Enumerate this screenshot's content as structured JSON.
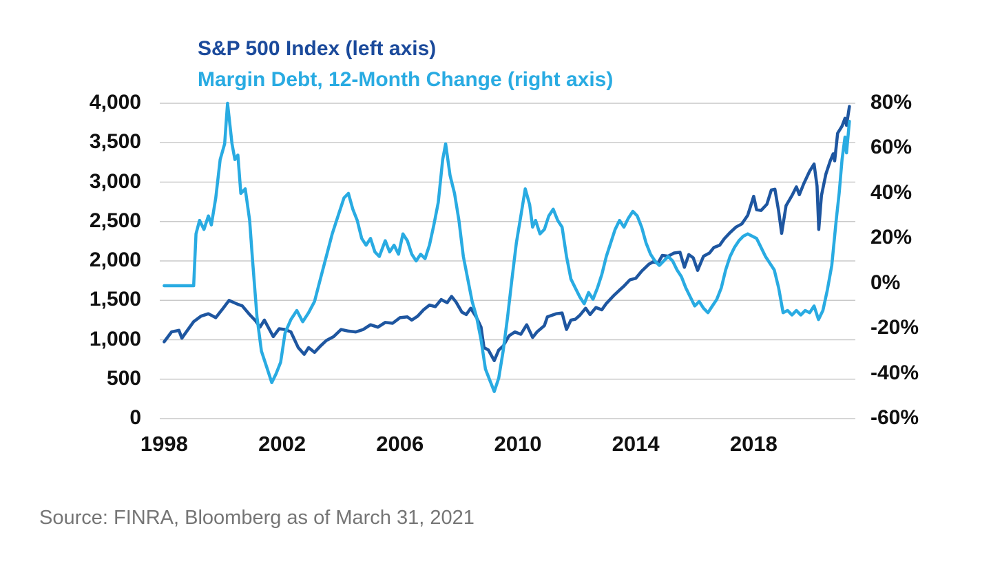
{
  "page": {
    "source": "Source: FINRA, Bloomberg as of March 31, 2021"
  },
  "chart_data": {
    "type": "line",
    "title_lines": [
      {
        "text": "S&P 500 Index (left axis)",
        "color": "#1B4A9B"
      },
      {
        "text": "Margin Debt, 12-Month Change (right axis)",
        "color": "#29ABE2"
      }
    ],
    "grid_color": "#c9c9c9",
    "x_range": [
      1997.85,
      2021.45
    ],
    "x_axis": {
      "labels": [
        "1998",
        "2002",
        "2006",
        "2010",
        "2014",
        "2018"
      ],
      "values": [
        1998,
        2002,
        2006,
        2010,
        2014,
        2018
      ]
    },
    "left_axis": {
      "title": "S&P 500 Index",
      "labels": [
        "4,000",
        "3,500",
        "3,000",
        "2,500",
        "2,000",
        "1,500",
        "1,000",
        "500",
        "0"
      ],
      "values": [
        4000,
        3500,
        3000,
        2500,
        2000,
        1500,
        1000,
        500,
        0
      ],
      "range": [
        0,
        4000
      ]
    },
    "right_axis": {
      "title": "Margin Debt, 12-Month Change",
      "labels": [
        "80%",
        "60%",
        "40%",
        "20%",
        "0%",
        "-20%",
        "-40%",
        "-60%"
      ],
      "values": [
        80,
        60,
        40,
        20,
        0,
        -20,
        -40,
        -60
      ],
      "range": [
        -60,
        80
      ]
    },
    "series": [
      {
        "id": "sp500-line",
        "name": "S&P 500 Index",
        "axis": "left",
        "color": "#1E56A0",
        "width": 4.5,
        "points": [
          [
            1998.0,
            975
          ],
          [
            1998.25,
            1100
          ],
          [
            1998.5,
            1120
          ],
          [
            1998.6,
            1020
          ],
          [
            1998.75,
            1100
          ],
          [
            1999.0,
            1230
          ],
          [
            1999.25,
            1300
          ],
          [
            1999.5,
            1330
          ],
          [
            1999.75,
            1280
          ],
          [
            2000.0,
            1400
          ],
          [
            2000.2,
            1500
          ],
          [
            2000.5,
            1450
          ],
          [
            2000.65,
            1430
          ],
          [
            2000.9,
            1320
          ],
          [
            2001.1,
            1240
          ],
          [
            2001.25,
            1160
          ],
          [
            2001.4,
            1250
          ],
          [
            2001.7,
            1040
          ],
          [
            2001.9,
            1140
          ],
          [
            2002.1,
            1130
          ],
          [
            2002.3,
            1100
          ],
          [
            2002.55,
            900
          ],
          [
            2002.75,
            815
          ],
          [
            2002.9,
            900
          ],
          [
            2003.1,
            840
          ],
          [
            2003.3,
            920
          ],
          [
            2003.5,
            990
          ],
          [
            2003.75,
            1040
          ],
          [
            2004.0,
            1130
          ],
          [
            2004.25,
            1110
          ],
          [
            2004.5,
            1100
          ],
          [
            2004.75,
            1130
          ],
          [
            2005.0,
            1190
          ],
          [
            2005.25,
            1160
          ],
          [
            2005.5,
            1220
          ],
          [
            2005.75,
            1210
          ],
          [
            2006.0,
            1280
          ],
          [
            2006.25,
            1290
          ],
          [
            2006.4,
            1250
          ],
          [
            2006.6,
            1300
          ],
          [
            2006.8,
            1380
          ],
          [
            2007.0,
            1440
          ],
          [
            2007.2,
            1420
          ],
          [
            2007.4,
            1510
          ],
          [
            2007.6,
            1470
          ],
          [
            2007.75,
            1550
          ],
          [
            2007.9,
            1480
          ],
          [
            2008.1,
            1350
          ],
          [
            2008.25,
            1320
          ],
          [
            2008.4,
            1400
          ],
          [
            2008.6,
            1280
          ],
          [
            2008.75,
            1160
          ],
          [
            2008.85,
            900
          ],
          [
            2009.0,
            870
          ],
          [
            2009.2,
            735
          ],
          [
            2009.35,
            870
          ],
          [
            2009.5,
            920
          ],
          [
            2009.7,
            1050
          ],
          [
            2009.9,
            1100
          ],
          [
            2010.1,
            1070
          ],
          [
            2010.3,
            1190
          ],
          [
            2010.5,
            1030
          ],
          [
            2010.65,
            1100
          ],
          [
            2010.9,
            1180
          ],
          [
            2011.0,
            1290
          ],
          [
            2011.3,
            1330
          ],
          [
            2011.5,
            1340
          ],
          [
            2011.65,
            1130
          ],
          [
            2011.8,
            1250
          ],
          [
            2011.95,
            1260
          ],
          [
            2012.1,
            1310
          ],
          [
            2012.3,
            1400
          ],
          [
            2012.45,
            1320
          ],
          [
            2012.65,
            1410
          ],
          [
            2012.85,
            1380
          ],
          [
            2013.0,
            1460
          ],
          [
            2013.25,
            1560
          ],
          [
            2013.45,
            1630
          ],
          [
            2013.6,
            1680
          ],
          [
            2013.8,
            1760
          ],
          [
            2014.0,
            1780
          ],
          [
            2014.2,
            1870
          ],
          [
            2014.45,
            1960
          ],
          [
            2014.6,
            1990
          ],
          [
            2014.75,
            1970
          ],
          [
            2014.9,
            2070
          ],
          [
            2015.1,
            2060
          ],
          [
            2015.3,
            2100
          ],
          [
            2015.5,
            2110
          ],
          [
            2015.65,
            1920
          ],
          [
            2015.8,
            2080
          ],
          [
            2015.95,
            2040
          ],
          [
            2016.1,
            1880
          ],
          [
            2016.3,
            2060
          ],
          [
            2016.5,
            2100
          ],
          [
            2016.65,
            2170
          ],
          [
            2016.85,
            2200
          ],
          [
            2017.0,
            2280
          ],
          [
            2017.2,
            2360
          ],
          [
            2017.4,
            2430
          ],
          [
            2017.6,
            2470
          ],
          [
            2017.8,
            2580
          ],
          [
            2018.0,
            2820
          ],
          [
            2018.1,
            2650
          ],
          [
            2018.25,
            2640
          ],
          [
            2018.45,
            2720
          ],
          [
            2018.6,
            2900
          ],
          [
            2018.72,
            2910
          ],
          [
            2018.85,
            2630
          ],
          [
            2018.95,
            2350
          ],
          [
            2019.1,
            2700
          ],
          [
            2019.3,
            2830
          ],
          [
            2019.45,
            2940
          ],
          [
            2019.55,
            2840
          ],
          [
            2019.7,
            2980
          ],
          [
            2019.9,
            3140
          ],
          [
            2020.05,
            3230
          ],
          [
            2020.15,
            2950
          ],
          [
            2020.21,
            2400
          ],
          [
            2020.3,
            2830
          ],
          [
            2020.45,
            3100
          ],
          [
            2020.6,
            3270
          ],
          [
            2020.7,
            3360
          ],
          [
            2020.75,
            3270
          ],
          [
            2020.85,
            3620
          ],
          [
            2021.0,
            3710
          ],
          [
            2021.1,
            3810
          ],
          [
            2021.15,
            3720
          ],
          [
            2021.25,
            3960
          ]
        ]
      },
      {
        "id": "margin-debt-line",
        "name": "Margin Debt, 12-Month Change",
        "axis": "right",
        "color": "#29ABE2",
        "width": 4.5,
        "points": [
          [
            1998.0,
            -1
          ],
          [
            1998.5,
            -1
          ],
          [
            1999.0,
            -1
          ],
          [
            1999.08,
            22
          ],
          [
            1999.2,
            28
          ],
          [
            1999.35,
            24
          ],
          [
            1999.5,
            30
          ],
          [
            1999.6,
            26
          ],
          [
            1999.75,
            38
          ],
          [
            1999.9,
            55
          ],
          [
            2000.05,
            62
          ],
          [
            2000.15,
            80
          ],
          [
            2000.3,
            62
          ],
          [
            2000.4,
            55
          ],
          [
            2000.5,
            57
          ],
          [
            2000.6,
            40
          ],
          [
            2000.75,
            42
          ],
          [
            2000.9,
            28
          ],
          [
            2001.0,
            10
          ],
          [
            2001.15,
            -15
          ],
          [
            2001.3,
            -30
          ],
          [
            2001.5,
            -38
          ],
          [
            2001.65,
            -44
          ],
          [
            2001.8,
            -40
          ],
          [
            2001.95,
            -35
          ],
          [
            2002.1,
            -22
          ],
          [
            2002.3,
            -16
          ],
          [
            2002.5,
            -12
          ],
          [
            2002.7,
            -17
          ],
          [
            2002.9,
            -13
          ],
          [
            2003.1,
            -8
          ],
          [
            2003.3,
            2
          ],
          [
            2003.5,
            12
          ],
          [
            2003.7,
            22
          ],
          [
            2003.9,
            30
          ],
          [
            2004.1,
            38
          ],
          [
            2004.25,
            40
          ],
          [
            2004.4,
            33
          ],
          [
            2004.55,
            28
          ],
          [
            2004.7,
            20
          ],
          [
            2004.85,
            17
          ],
          [
            2005.0,
            20
          ],
          [
            2005.15,
            14
          ],
          [
            2005.3,
            12
          ],
          [
            2005.5,
            19
          ],
          [
            2005.65,
            14
          ],
          [
            2005.8,
            17
          ],
          [
            2005.95,
            13
          ],
          [
            2006.1,
            22
          ],
          [
            2006.25,
            19
          ],
          [
            2006.4,
            13
          ],
          [
            2006.55,
            10
          ],
          [
            2006.7,
            13
          ],
          [
            2006.85,
            11
          ],
          [
            2007.0,
            17
          ],
          [
            2007.15,
            26
          ],
          [
            2007.3,
            36
          ],
          [
            2007.45,
            55
          ],
          [
            2007.55,
            62
          ],
          [
            2007.7,
            48
          ],
          [
            2007.85,
            40
          ],
          [
            2008.0,
            28
          ],
          [
            2008.15,
            12
          ],
          [
            2008.3,
            2
          ],
          [
            2008.45,
            -8
          ],
          [
            2008.6,
            -15
          ],
          [
            2008.75,
            -25
          ],
          [
            2008.9,
            -38
          ],
          [
            2009.05,
            -43
          ],
          [
            2009.2,
            -48
          ],
          [
            2009.35,
            -42
          ],
          [
            2009.5,
            -30
          ],
          [
            2009.65,
            -15
          ],
          [
            2009.8,
            2
          ],
          [
            2009.95,
            18
          ],
          [
            2010.1,
            30
          ],
          [
            2010.25,
            42
          ],
          [
            2010.4,
            35
          ],
          [
            2010.5,
            25
          ],
          [
            2010.6,
            28
          ],
          [
            2010.75,
            22
          ],
          [
            2010.9,
            24
          ],
          [
            2011.05,
            30
          ],
          [
            2011.2,
            33
          ],
          [
            2011.35,
            28
          ],
          [
            2011.5,
            25
          ],
          [
            2011.65,
            12
          ],
          [
            2011.8,
            2
          ],
          [
            2011.95,
            -2
          ],
          [
            2012.1,
            -6
          ],
          [
            2012.25,
            -9
          ],
          [
            2012.4,
            -4
          ],
          [
            2012.55,
            -7
          ],
          [
            2012.7,
            -2
          ],
          [
            2012.85,
            4
          ],
          [
            2013.0,
            12
          ],
          [
            2013.15,
            18
          ],
          [
            2013.3,
            24
          ],
          [
            2013.45,
            28
          ],
          [
            2013.6,
            25
          ],
          [
            2013.75,
            29
          ],
          [
            2013.9,
            32
          ],
          [
            2014.05,
            30
          ],
          [
            2014.2,
            25
          ],
          [
            2014.35,
            18
          ],
          [
            2014.5,
            13
          ],
          [
            2014.65,
            10
          ],
          [
            2014.8,
            8
          ],
          [
            2014.95,
            10
          ],
          [
            2015.1,
            12
          ],
          [
            2015.25,
            10
          ],
          [
            2015.4,
            6
          ],
          [
            2015.55,
            3
          ],
          [
            2015.7,
            -2
          ],
          [
            2015.85,
            -6
          ],
          [
            2016.0,
            -10
          ],
          [
            2016.15,
            -8
          ],
          [
            2016.3,
            -11
          ],
          [
            2016.45,
            -13
          ],
          [
            2016.6,
            -10
          ],
          [
            2016.75,
            -7
          ],
          [
            2016.9,
            -2
          ],
          [
            2017.05,
            6
          ],
          [
            2017.2,
            12
          ],
          [
            2017.35,
            16
          ],
          [
            2017.5,
            19
          ],
          [
            2017.65,
            21
          ],
          [
            2017.8,
            22
          ],
          [
            2017.95,
            21
          ],
          [
            2018.1,
            20
          ],
          [
            2018.25,
            16
          ],
          [
            2018.4,
            12
          ],
          [
            2018.55,
            9
          ],
          [
            2018.7,
            6
          ],
          [
            2018.85,
            -2
          ],
          [
            2019.0,
            -13
          ],
          [
            2019.15,
            -12
          ],
          [
            2019.3,
            -14
          ],
          [
            2019.45,
            -12
          ],
          [
            2019.6,
            -14
          ],
          [
            2019.75,
            -12
          ],
          [
            2019.9,
            -13
          ],
          [
            2020.05,
            -10
          ],
          [
            2020.2,
            -16
          ],
          [
            2020.35,
            -12
          ],
          [
            2020.5,
            -3
          ],
          [
            2020.65,
            8
          ],
          [
            2020.8,
            28
          ],
          [
            2020.9,
            40
          ],
          [
            2021.0,
            55
          ],
          [
            2021.1,
            65
          ],
          [
            2021.15,
            58
          ],
          [
            2021.25,
            72
          ]
        ]
      }
    ],
    "source": "Source: FINRA, Bloomberg as of March 31, 2021"
  }
}
